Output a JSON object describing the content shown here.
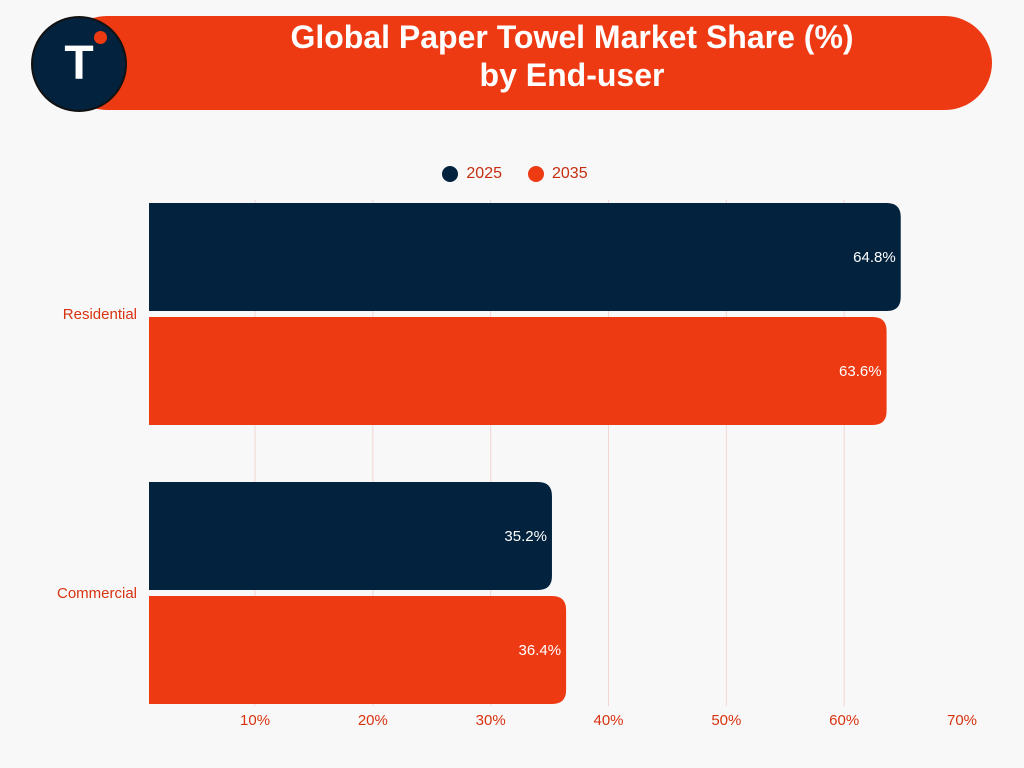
{
  "chart_data": {
    "type": "bar",
    "orientation": "horizontal",
    "title": "Global Paper Towel Market Share (%)\nby End-user",
    "title_line1": "Global Paper Towel Market Share (%)",
    "title_line2": "by End-user",
    "categories": [
      "Residential",
      "Commercial"
    ],
    "series": [
      {
        "name": "2025",
        "color": "#02223d",
        "values": [
          64.8,
          35.2
        ],
        "labels": [
          "64.8%",
          "35.2%"
        ]
      },
      {
        "name": "2035",
        "color": "#ee3a12",
        "values": [
          63.6,
          36.4
        ],
        "labels": [
          "63.6%",
          "36.4%"
        ]
      }
    ],
    "xlim": [
      1,
      70
    ],
    "xticks": [
      10,
      20,
      30,
      40,
      50,
      60,
      70
    ],
    "xtick_labels": [
      "10%",
      "20%",
      "30%",
      "40%",
      "50%",
      "60%",
      "70%"
    ],
    "grid": true,
    "legend_position": "top-center"
  },
  "logo": {
    "letter": "T"
  },
  "colors": {
    "accent": "#ee3a12",
    "dark": "#02223d",
    "grid": "#f2d6d0"
  }
}
